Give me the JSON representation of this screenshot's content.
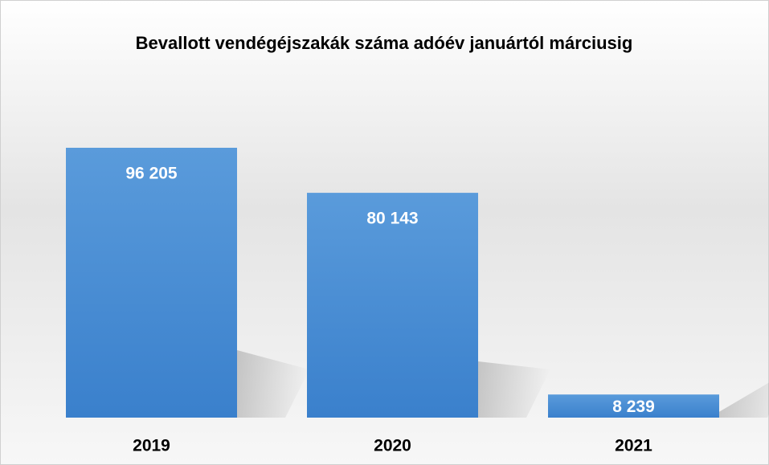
{
  "chart_data": {
    "type": "bar",
    "title": "Bevallott vendégéjszakák száma adóév januártól márciusig",
    "categories": [
      "2019",
      "2020",
      "2021"
    ],
    "values": [
      96205,
      80143,
      8239
    ],
    "value_labels": [
      "96 205",
      "80 143",
      "8 239"
    ],
    "color": "#4a8fd6"
  }
}
